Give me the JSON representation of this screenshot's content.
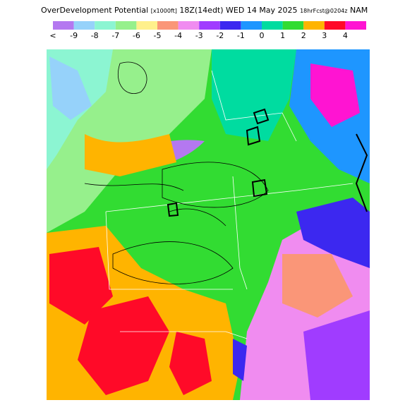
{
  "header": {
    "title": "OverDevelopment Potential",
    "units": "[x1000ft]",
    "valid_time": "18Z(14edt) WED 14 May 2025",
    "forecast": "18hrFcst@0204z",
    "model": "NAM"
  },
  "colorbar": {
    "labels": [
      "<",
      "-9",
      "-8",
      "-7",
      "-6",
      "-5",
      "-4",
      "-3",
      "-2",
      "-1",
      "0",
      "1",
      "2",
      "3",
      "4"
    ],
    "colors": [
      "#b478f0",
      "#96d2fa",
      "#8cf5d2",
      "#96f08c",
      "#fff08c",
      "#fa9678",
      "#f08cf0",
      "#a03cff",
      "#3c28f0",
      "#1e96ff",
      "#00dca0",
      "#32dc32",
      "#ffb400",
      "#ff0a28",
      "#ff14d2"
    ]
  }
}
